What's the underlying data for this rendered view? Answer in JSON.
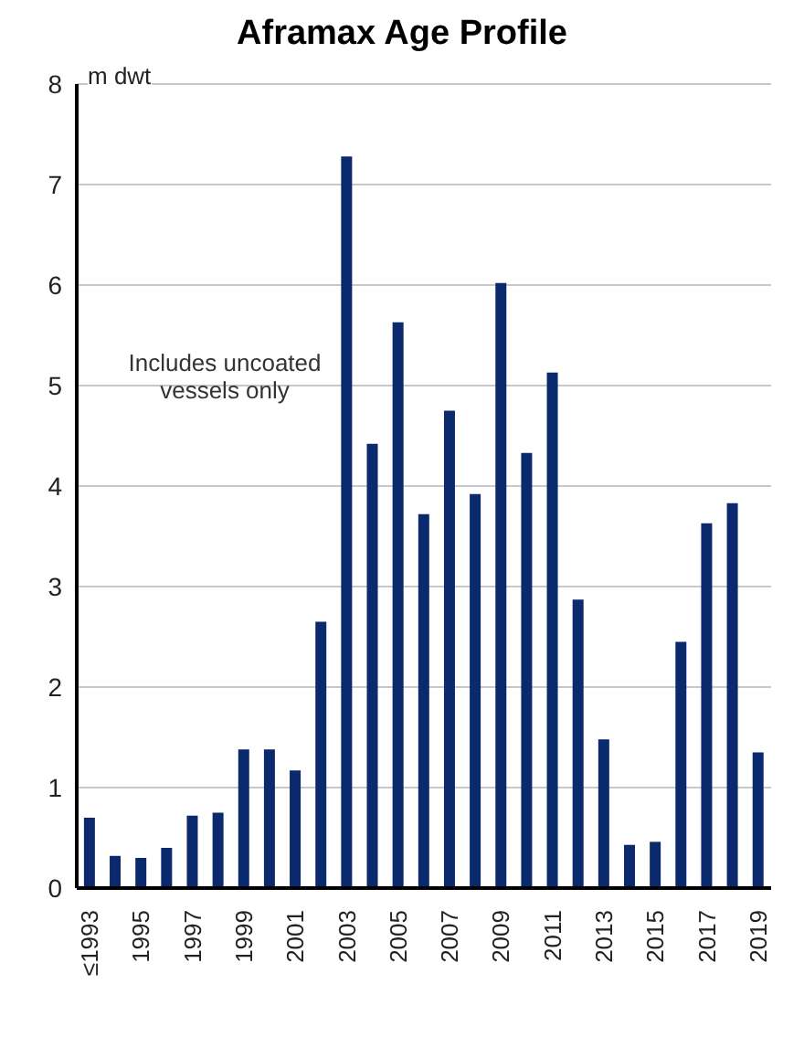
{
  "chart_data": {
    "type": "bar",
    "title": "Aframax Age Profile",
    "ylabel": "m dwt",
    "categories": [
      "≤1993",
      null,
      "1995",
      null,
      "1997",
      null,
      "1999",
      null,
      "2001",
      null,
      "2003",
      null,
      "2005",
      null,
      "2007",
      null,
      "2009",
      null,
      "2011",
      null,
      "2013",
      null,
      "2015",
      null,
      "2017",
      null,
      "2019"
    ],
    "values": [
      0.7,
      0.32,
      0.3,
      0.4,
      0.72,
      0.75,
      1.38,
      1.38,
      1.17,
      2.65,
      7.28,
      4.42,
      5.63,
      3.72,
      4.75,
      3.92,
      6.02,
      4.33,
      5.13,
      2.87,
      1.48,
      0.43,
      0.46,
      2.45,
      3.63,
      3.83,
      1.35
    ],
    "color": "#0b2a6e",
    "ylim": [
      0,
      8
    ],
    "yticks": [
      0,
      1,
      2,
      3,
      4,
      5,
      6,
      7,
      8
    ],
    "grid": "y",
    "annotations": [
      "Includes uncoated vessels only"
    ]
  }
}
